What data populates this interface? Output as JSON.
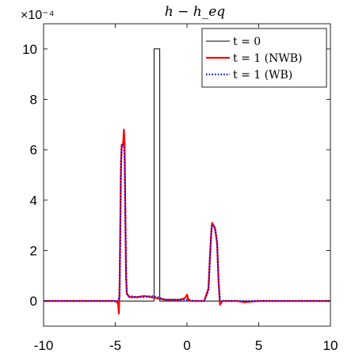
{
  "chart_data": {
    "type": "line",
    "title": "h − h_eq",
    "xlabel": "",
    "ylabel": "",
    "y_multiplier": "×10⁻⁴",
    "xlim": [
      -10,
      10
    ],
    "ylim": [
      -1,
      11
    ],
    "x_ticks": [
      -10,
      -5,
      0,
      5,
      10
    ],
    "y_ticks": [
      0,
      2,
      4,
      6,
      8,
      10
    ],
    "x_tick_labels": [
      "-10",
      "-5",
      "0",
      "5",
      "10"
    ],
    "y_tick_labels": [
      "0",
      "2",
      "4",
      "6",
      "8",
      "10"
    ],
    "grid": false,
    "legend_position": "top-right",
    "series": [
      {
        "name": "t = 0",
        "color": "#000000",
        "style": "solid",
        "x": [
          -10,
          -2.3,
          -2.3,
          -1.9,
          -1.9,
          10
        ],
        "y": [
          0,
          0,
          10,
          10,
          0,
          0
        ]
      },
      {
        "name": "t = 1 (NWB)",
        "color": "#ff0000",
        "style": "solid",
        "x": [
          -10,
          -5,
          -4.8,
          -4.75,
          -4.7,
          -4.65,
          -4.6,
          -4.55,
          -4.5,
          -4.45,
          -4.4,
          -4.35,
          -4.3,
          -4.25,
          -4.2,
          -4.1,
          -4.0,
          -3.5,
          -3.0,
          -2.5,
          -2.0,
          -1.5,
          -1.0,
          -0.5,
          -0.2,
          -0.1,
          0.0,
          0.1,
          0.3,
          0.8,
          1.2,
          1.5,
          1.6,
          1.7,
          1.75,
          1.85,
          1.95,
          2.1,
          2.2,
          2.3,
          2.4,
          2.5,
          3.0,
          3.5,
          4.0,
          5.0,
          10
        ],
        "y": [
          0,
          0,
          -0.1,
          -0.5,
          0.5,
          3.0,
          5.5,
          6.2,
          6.15,
          6.3,
          6.8,
          6.2,
          3.5,
          1.0,
          0.3,
          0.2,
          0.15,
          0.15,
          0.2,
          0.15,
          0.1,
          0.05,
          0.05,
          0.05,
          0.1,
          0.15,
          0.25,
          0.05,
          0.0,
          0.0,
          0.0,
          0.5,
          1.8,
          2.8,
          3.1,
          3.0,
          2.9,
          2.3,
          0.8,
          -0.15,
          -0.05,
          0.0,
          0.0,
          0.0,
          -0.05,
          0.0,
          0
        ]
      },
      {
        "name": "t = 1 (WB)",
        "color": "#0000ff",
        "style": "dotted",
        "x": [
          -10,
          -5,
          -4.8,
          -4.7,
          -4.65,
          -4.6,
          -4.55,
          -4.5,
          -4.45,
          -4.4,
          -4.35,
          -4.3,
          -4.25,
          -4.2,
          -4.1,
          -4.0,
          -3.5,
          -3.0,
          -2.5,
          -2.0,
          -1.5,
          -1.0,
          -0.5,
          0.0,
          0.5,
          1.2,
          1.5,
          1.6,
          1.7,
          1.75,
          1.85,
          1.95,
          2.1,
          2.2,
          2.3,
          2.5,
          3.0,
          3.5,
          4.0,
          5.0,
          10
        ],
        "y": [
          0,
          0,
          0.0,
          0.2,
          2.5,
          5.2,
          6.1,
          6.2,
          6.2,
          6.1,
          5.5,
          3.0,
          1.0,
          0.3,
          0.2,
          0.2,
          0.15,
          0.15,
          0.2,
          0.15,
          0.05,
          0.05,
          0.05,
          0.05,
          0.0,
          0.0,
          0.4,
          1.7,
          2.8,
          3.0,
          2.95,
          2.9,
          2.3,
          0.8,
          0.05,
          0.0,
          0.0,
          0.0,
          0.0,
          0.0,
          0
        ]
      }
    ]
  }
}
